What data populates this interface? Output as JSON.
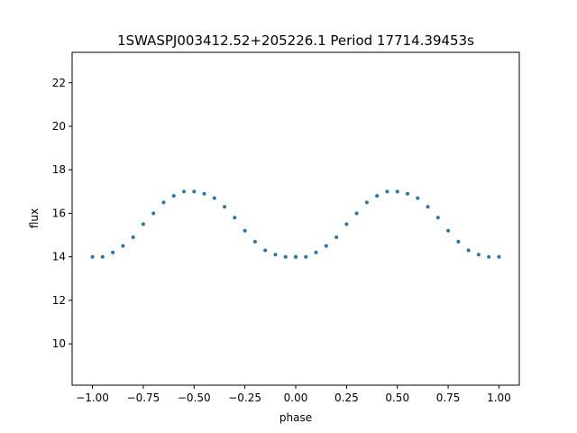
{
  "chart_data": {
    "type": "scatter",
    "title": "1SWASPJ003412.52+205226.1 Period 17714.39453s",
    "xlabel": "phase",
    "ylabel": "flux",
    "xlim": [
      -1.1,
      1.1
    ],
    "ylim": [
      8.1,
      23.4
    ],
    "grid": false,
    "legend": "none",
    "marker_color": "#1f77b4",
    "x_ticks": [
      -1.0,
      -0.75,
      -0.5,
      -0.25,
      0.0,
      0.25,
      0.5,
      0.75,
      1.0
    ],
    "x_tick_labels": [
      "−1.00",
      "−0.75",
      "−0.50",
      "−0.25",
      "0.00",
      "0.25",
      "0.50",
      "0.75",
      "1.00"
    ],
    "y_ticks": [
      10,
      12,
      14,
      16,
      18,
      20,
      22
    ],
    "y_tick_labels": [
      "10",
      "12",
      "14",
      "16",
      "18",
      "20",
      "22"
    ],
    "x": [
      -1.0,
      -0.95,
      -0.9,
      -0.85,
      -0.8,
      -0.75,
      -0.7,
      -0.65,
      -0.6,
      -0.55,
      -0.5,
      -0.45,
      -0.4,
      -0.35,
      -0.3,
      -0.25,
      -0.2,
      -0.15,
      -0.1,
      -0.05,
      0.0,
      0.05,
      0.1,
      0.15,
      0.2,
      0.25,
      0.3,
      0.35,
      0.4,
      0.45,
      0.5,
      0.55,
      0.6,
      0.65,
      0.7,
      0.75,
      0.8,
      0.85,
      0.9,
      0.95,
      1.0
    ],
    "y": [
      14.0,
      14.0,
      14.2,
      14.5,
      14.9,
      15.5,
      16.0,
      16.5,
      16.8,
      17.0,
      17.0,
      16.9,
      16.7,
      16.3,
      15.8,
      15.2,
      14.7,
      14.3,
      14.1,
      14.0,
      14.0,
      14.0,
      14.2,
      14.5,
      14.9,
      15.5,
      16.0,
      16.5,
      16.8,
      17.0,
      17.0,
      16.9,
      16.7,
      16.3,
      15.8,
      15.2,
      14.7,
      14.3,
      14.1,
      14.0,
      14.0
    ]
  }
}
